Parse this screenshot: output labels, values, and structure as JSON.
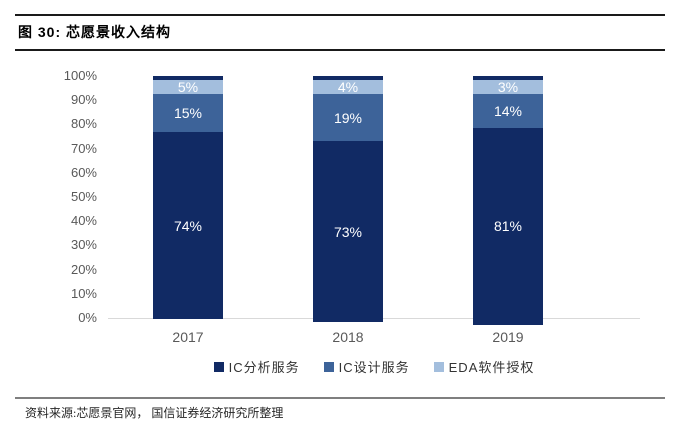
{
  "figure": {
    "title": "图 30:  芯愿景收入结构",
    "source_text": "资料来源:芯愿景官网， 国信证券经济研究所整理"
  },
  "chart_data": {
    "type": "bar",
    "stacked": true,
    "percent_stacked": true,
    "title": "芯愿景收入结构",
    "categories": [
      "2017",
      "2018",
      "2019"
    ],
    "series": [
      {
        "name": "IC分析服务",
        "color": "#112a64",
        "values": [
          74,
          73,
          81
        ]
      },
      {
        "name": "IC设计服务",
        "color": "#3d6399",
        "values": [
          15,
          19,
          14
        ]
      },
      {
        "name": "EDA软件授权",
        "color": "#a3bedd",
        "values": [
          5,
          4,
          3
        ]
      }
    ],
    "value_label_color": "#ffffff",
    "value_label_suffix": "%",
    "xlabel": "",
    "ylabel": "",
    "ylim": [
      0,
      100
    ],
    "yticks": [
      "0%",
      "10%",
      "20%",
      "30%",
      "40%",
      "50%",
      "60%",
      "70%",
      "80%",
      "90%",
      "100%"
    ],
    "axis_text_color": "#595959",
    "axis_line_color": "#d9d9d9",
    "grid": false,
    "legend_position": "bottom"
  }
}
